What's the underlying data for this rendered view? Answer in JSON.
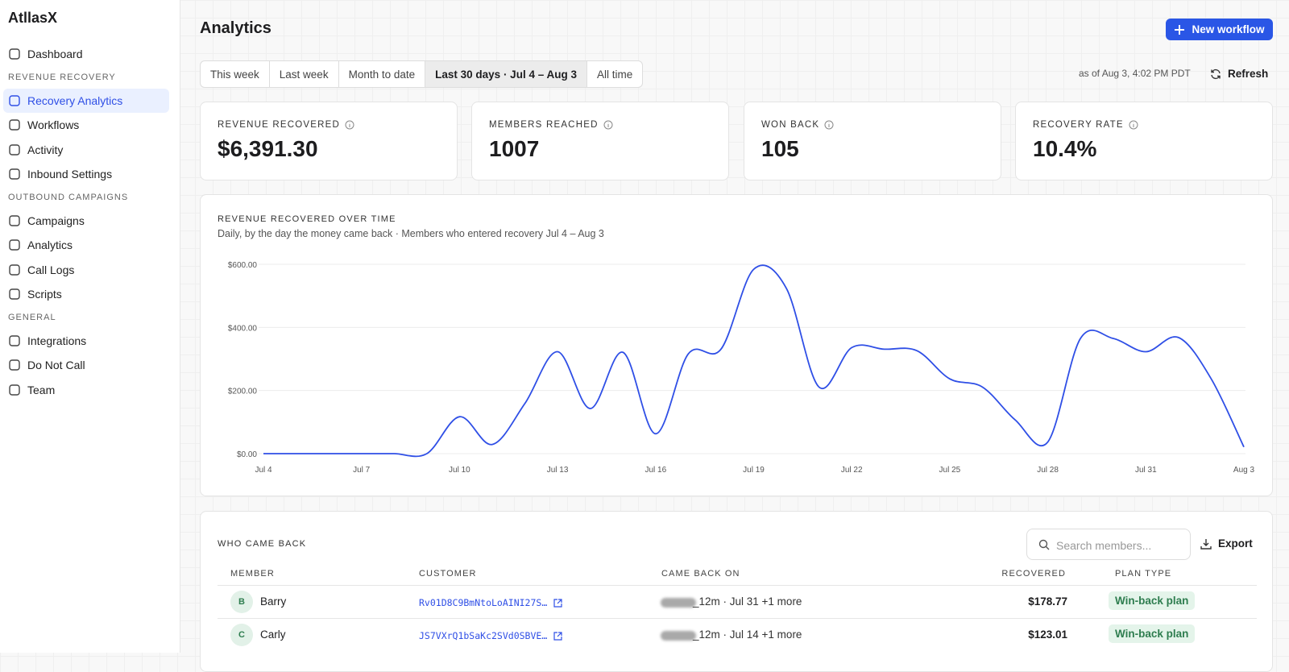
{
  "sidebar": {
    "brand": "AtllasX",
    "sections": [
      {
        "items": [
          {
            "label": "Dashboard"
          }
        ]
      },
      {
        "heading": "REVENUE RECOVERY",
        "items": [
          {
            "label": "Recovery Analytics",
            "active": true
          },
          {
            "label": "Workflows"
          },
          {
            "label": "Activity"
          },
          {
            "label": "Inbound Settings"
          }
        ]
      },
      {
        "heading": "OUTBOUND CAMPAIGNS",
        "items": [
          {
            "label": "Campaigns"
          },
          {
            "label": "Analytics"
          },
          {
            "label": "Call Logs"
          },
          {
            "label": "Scripts"
          }
        ]
      },
      {
        "heading": "GENERAL",
        "items": [
          {
            "label": "Integrations"
          },
          {
            "label": "Do Not Call"
          },
          {
            "label": "Team"
          }
        ]
      }
    ]
  },
  "header": {
    "title": "Analytics",
    "new_workflow": "New workflow",
    "tabs": [
      {
        "label": "This week"
      },
      {
        "label": "Last week"
      },
      {
        "label": "Month to date"
      },
      {
        "label": "Last 30 days · Jul 4 – Aug 3",
        "active": true
      },
      {
        "label": "All time"
      }
    ],
    "as_of": "as of Aug 3, 4:02 PM PDT",
    "refresh": "Refresh"
  },
  "stats": [
    {
      "label": "REVENUE RECOVERED",
      "value": "$6,391.30"
    },
    {
      "label": "MEMBERS REACHED",
      "value": "1007"
    },
    {
      "label": "WON BACK",
      "value": "105"
    },
    {
      "label": "RECOVERY RATE",
      "value": "10.4%"
    }
  ],
  "chart_data": {
    "type": "line",
    "title": "REVENUE RECOVERED OVER TIME",
    "subtitle": "Daily, by the day the money came back · Members who entered recovery Jul 4 – Aug 3",
    "categories": [
      "Jul 4",
      null,
      null,
      "Jul 7",
      null,
      null,
      "Jul 10",
      null,
      null,
      "Jul 13",
      null,
      null,
      "Jul 16",
      null,
      null,
      "Jul 19",
      null,
      null,
      "Jul 22",
      null,
      null,
      "Jul 25",
      null,
      null,
      "Jul 28",
      null,
      null,
      "Jul 31",
      null,
      null,
      "Aug 3"
    ],
    "values": [
      0,
      0,
      0,
      0,
      0,
      0,
      117,
      29,
      159,
      323,
      143,
      321,
      63,
      316,
      331,
      584,
      524,
      211,
      336,
      331,
      326,
      237,
      211,
      107,
      37,
      365,
      365,
      323,
      368,
      237,
      21
    ],
    "color": "#2f4fe6",
    "ylim": [
      0,
      600
    ],
    "yticks": [
      {
        "value": 0,
        "label": "$0.00"
      },
      {
        "value": 200,
        "label": "$200.00"
      },
      {
        "value": 400,
        "label": "$400.00"
      },
      {
        "value": 600,
        "label": "$600.00"
      }
    ],
    "grid": true
  },
  "table": {
    "title": "WHO CAME BACK",
    "search_placeholder": "Search members...",
    "export": "Export",
    "columns": [
      "MEMBER",
      "CUSTOMER",
      "CAME BACK ON",
      "RECOVERED",
      "PLAN TYPE"
    ],
    "rows": [
      {
        "initial": "B",
        "member": "Barry",
        "customer": "Rv01D8C9BmNtoLoAINI27S…",
        "came_back_on": "_12m · Jul 31 +1 more",
        "recovered": "$178.77",
        "plan_type": "Win-back plan"
      },
      {
        "initial": "C",
        "member": "Carly",
        "customer": "JS7VXrQ1bSaKc2SVd0SBVE…",
        "came_back_on": "_12m · Jul 14 +1 more",
        "recovered": "$123.01",
        "plan_type": "Win-back plan"
      }
    ]
  }
}
